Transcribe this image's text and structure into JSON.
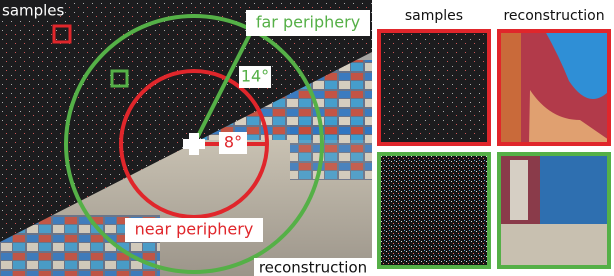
{
  "figure": {
    "main": {
      "samples_label": "samples",
      "far_label": "far periphery",
      "far_angle": "14°",
      "near_angle": "8°",
      "near_label": "near periphery",
      "reconstruction_label": "reconstruction"
    },
    "panels": {
      "headers": [
        "samples",
        "reconstruction"
      ]
    }
  }
}
